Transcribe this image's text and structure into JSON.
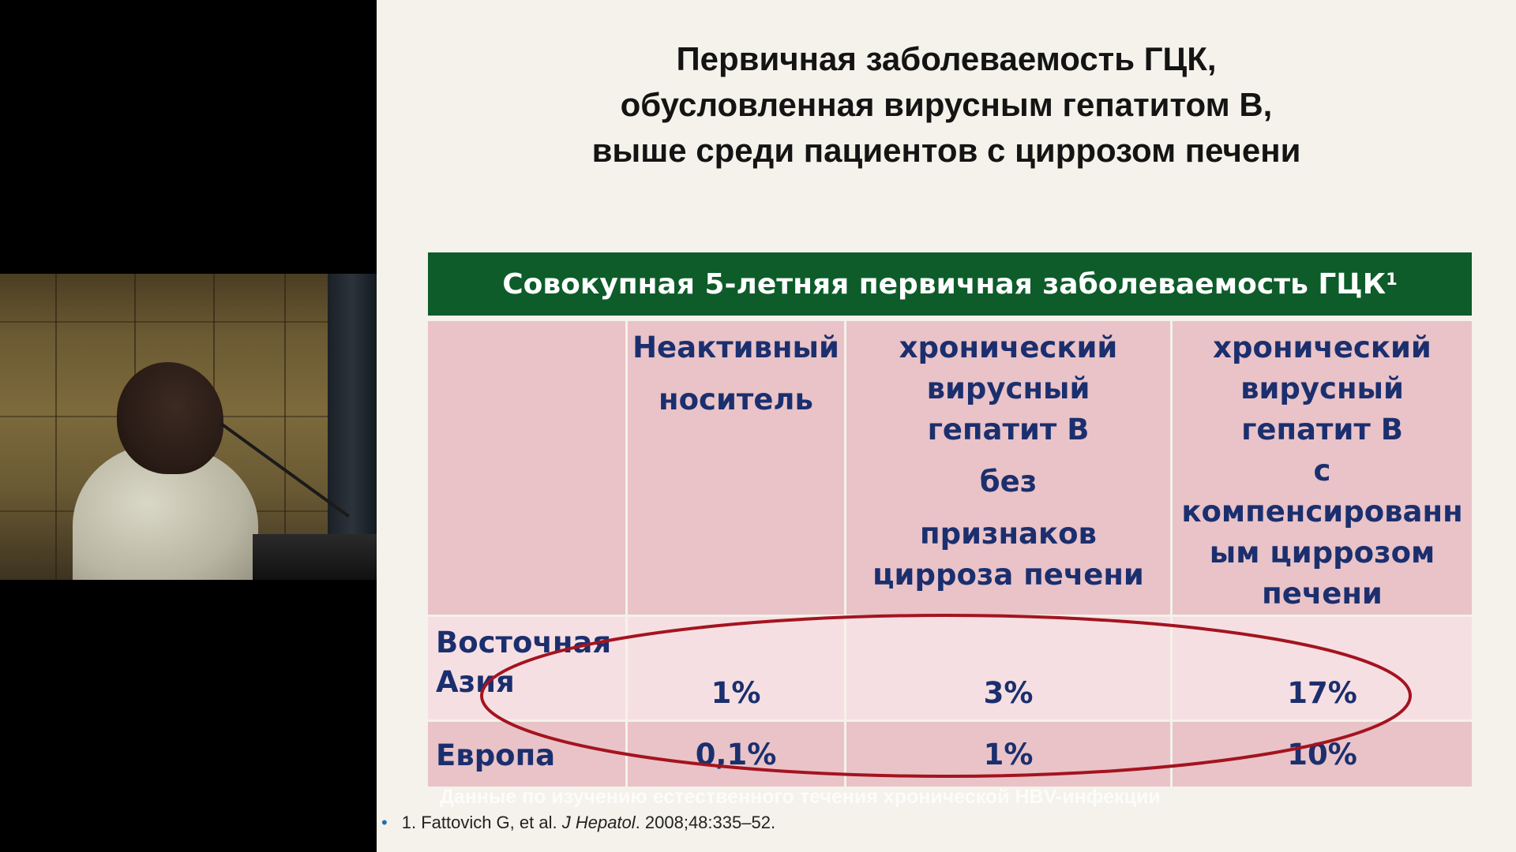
{
  "slide": {
    "title_lines": [
      "Первичная заболеваемость ГЦК,",
      "обусловленная вирусным гепатитом В,",
      "выше среди пациентов с циррозом печени"
    ],
    "table": {
      "header": "Совокупная 5-летняя первичная заболеваемость ГЦК",
      "header_sup": "1",
      "columns": [
        {
          "lines": [
            "Неактивный",
            "носитель"
          ]
        },
        {
          "lines": [
            "хронический",
            "вирусный",
            "гепатит В",
            "без",
            "признаков",
            "цирроза печени"
          ]
        },
        {
          "lines": [
            "хронический",
            "вирусный",
            "гепатит В",
            "с",
            "компенсированн",
            "ым циррозом",
            "печени"
          ]
        }
      ],
      "rows": [
        {
          "label_lines": [
            "Восточная",
            "Азия"
          ],
          "values": [
            "1%",
            "3%",
            "17%"
          ]
        },
        {
          "label_lines": [
            "Европа"
          ],
          "values": [
            "0,1%",
            "1%",
            "10%"
          ]
        }
      ]
    },
    "ghost_caption": "Данные по изучению  естественного течения хронической  HBV-инфекции",
    "footnote": {
      "bullet": "•",
      "number": "1.",
      "authors": "Fattovich  G, et al.",
      "journal": "J Hepatol",
      "citation": ". 2008;48:335–52."
    }
  },
  "colors": {
    "header_green": "#0d5c2a",
    "cell_pink": "#e9c3c8",
    "cell_light_pink": "#f6dfe2",
    "text_navy": "#1b2f6e",
    "ellipse_red": "#a3141f",
    "slide_bg": "#f4f2ea"
  }
}
